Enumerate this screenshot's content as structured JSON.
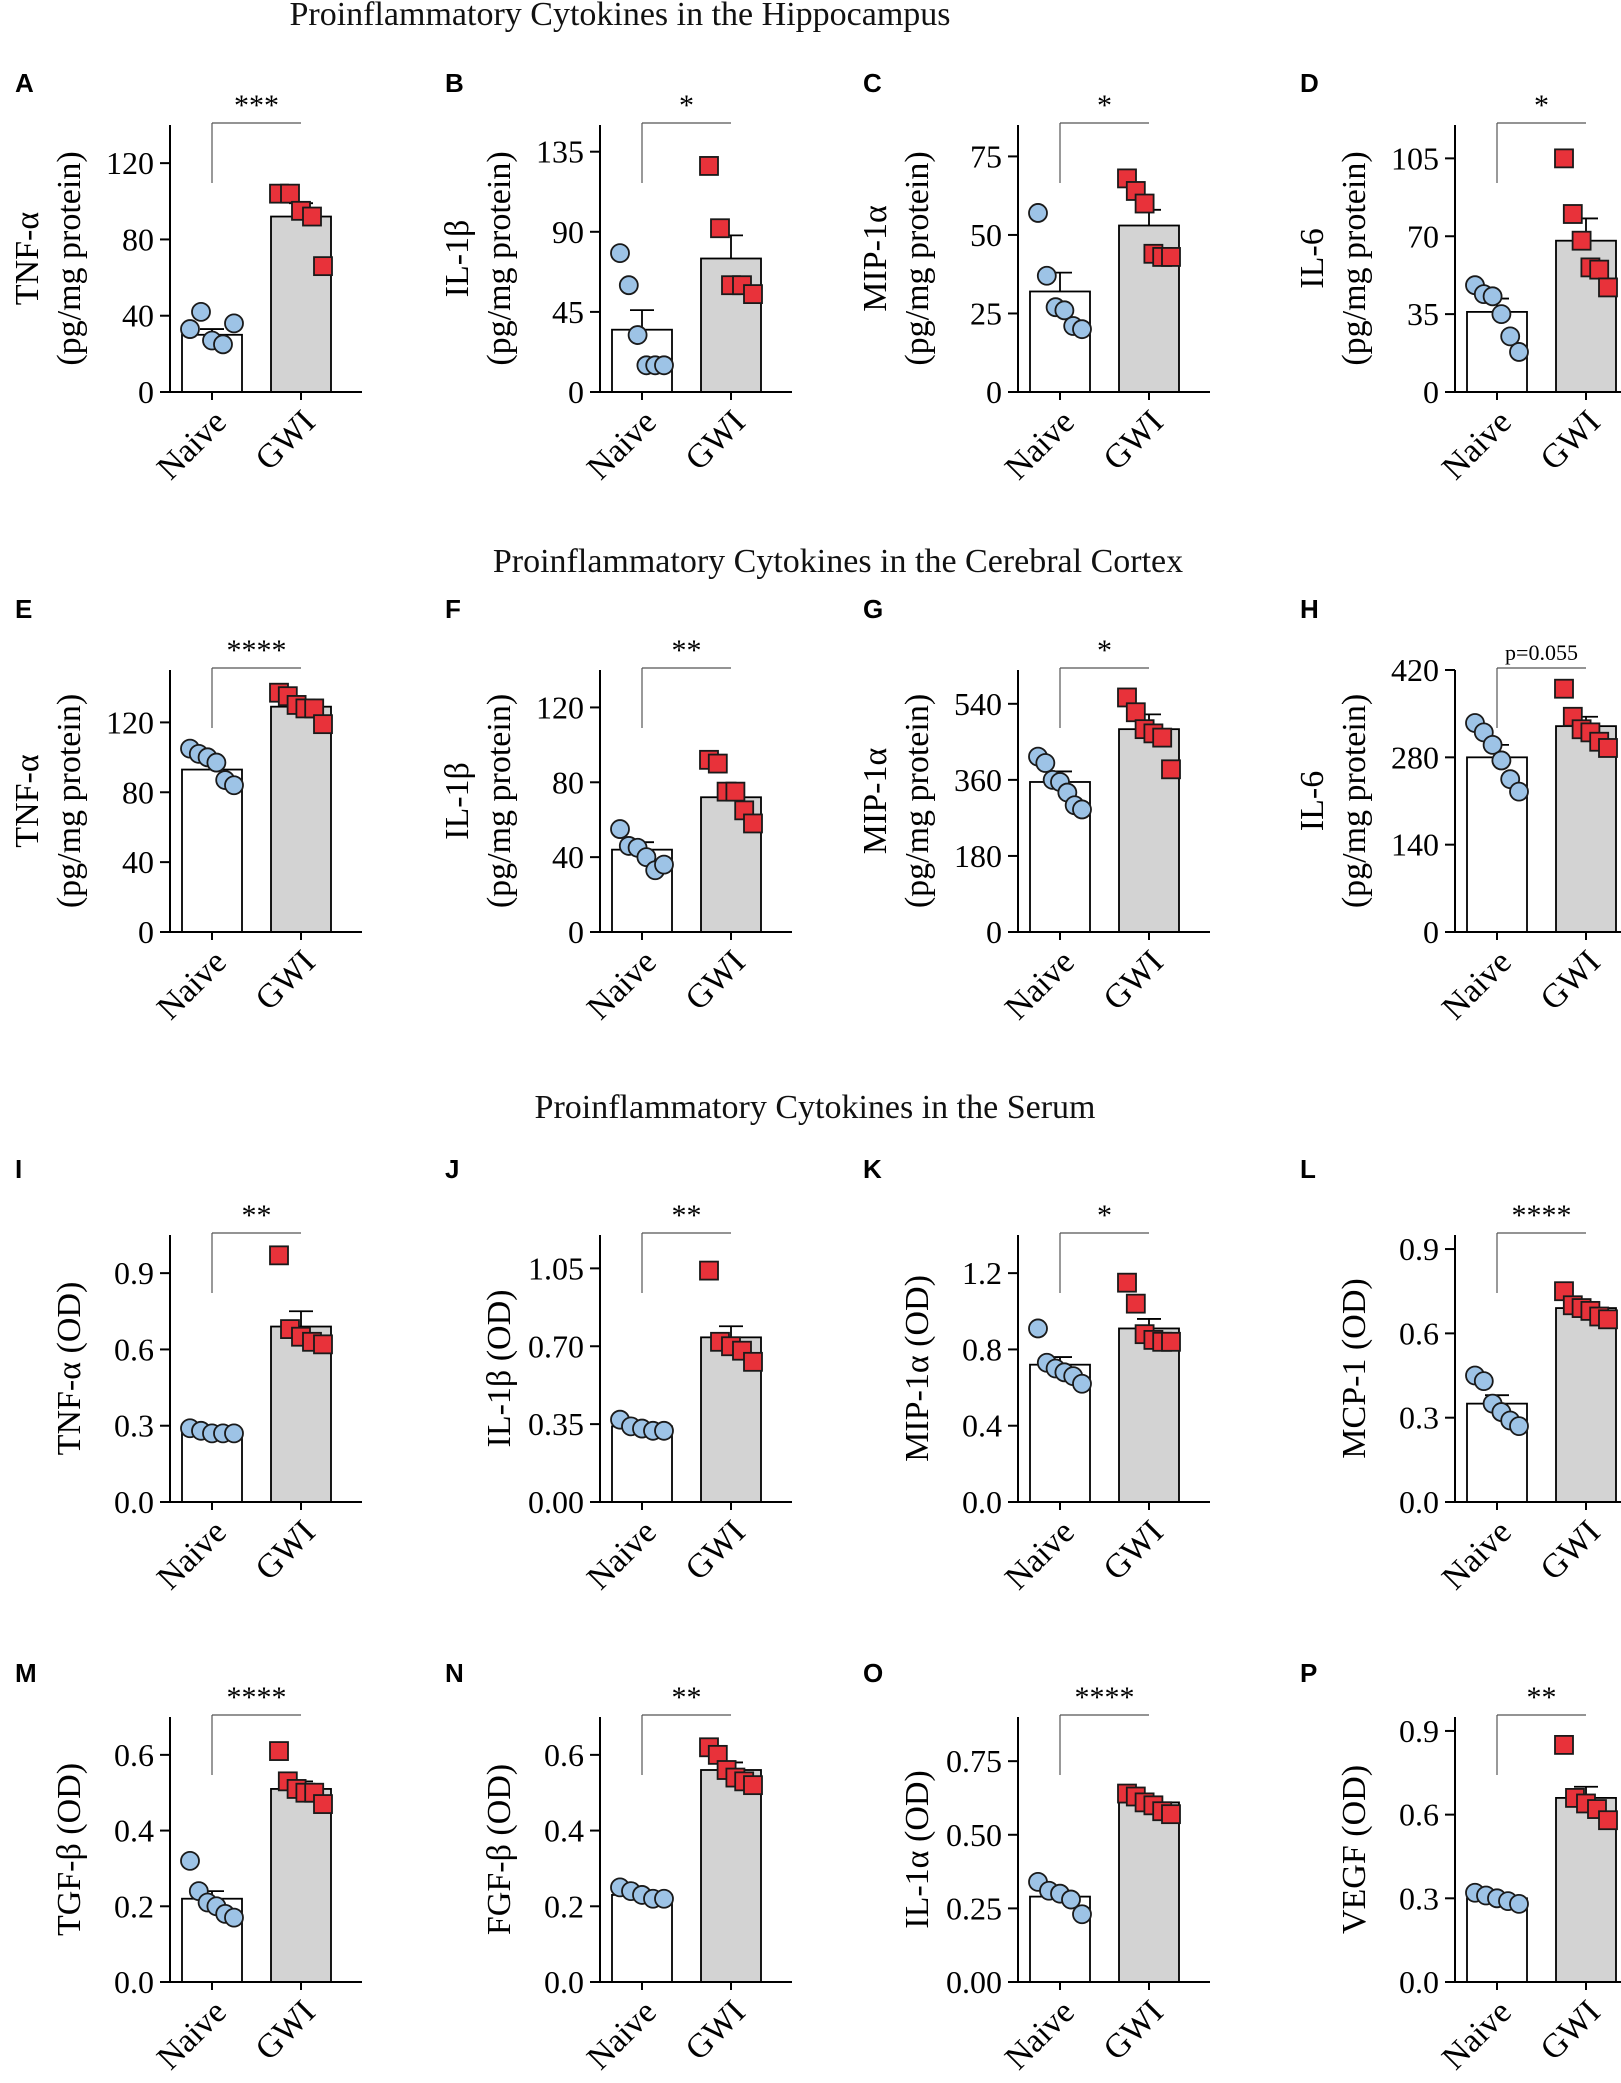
{
  "titles": {
    "hippocampus": "Proinflammatory Cytokines in the Hippocampus",
    "cortex": "Proinflammatory Cytokines in the Cerebral Cortex",
    "serum": "Proinflammatory Cytokines in the Serum"
  },
  "colors": {
    "naive_fill": "#ffffff",
    "gwi_fill": "#d3d3d3",
    "naive_marker": "#9dc3e6",
    "gwi_marker": "#e8323a"
  },
  "chart_data": [
    {
      "panel": "A",
      "type": "bar",
      "title": "",
      "categories": [
        "Naive",
        "GWI"
      ],
      "ylabel_lines": [
        "TNF-α",
        "(pg/mg protein)"
      ],
      "ylim": [
        0,
        140
      ],
      "ticks": [
        0,
        40,
        80,
        120
      ],
      "tick_labels": [
        "0",
        "40",
        "80",
        "120"
      ],
      "means": [
        30,
        92
      ],
      "sems": [
        3,
        7
      ],
      "points": [
        [
          33,
          42,
          27,
          25,
          36
        ],
        [
          104,
          104,
          95,
          92,
          66
        ]
      ],
      "significance": "***"
    },
    {
      "panel": "B",
      "type": "bar",
      "title": "",
      "categories": [
        "Naive",
        "GWI"
      ],
      "ylabel_lines": [
        "IL-1β",
        "(pg/mg protein)"
      ],
      "ylim": [
        0,
        150
      ],
      "ticks": [
        0,
        45,
        90,
        135
      ],
      "tick_labels": [
        "0",
        "45",
        "90",
        "135"
      ],
      "means": [
        35,
        75
      ],
      "sems": [
        11,
        13
      ],
      "points": [
        [
          78,
          60,
          32,
          15,
          15,
          15
        ],
        [
          127,
          92,
          60,
          60,
          55
        ]
      ],
      "significance": "*"
    },
    {
      "panel": "C",
      "type": "bar",
      "title": "",
      "categories": [
        "Naive",
        "GWI"
      ],
      "ylabel_lines": [
        "MIP-1α",
        "(pg/mg protein)"
      ],
      "ylim": [
        0,
        85
      ],
      "ticks": [
        0,
        25,
        50,
        75
      ],
      "tick_labels": [
        "0",
        "25",
        "50",
        "75"
      ],
      "means": [
        32,
        53
      ],
      "sems": [
        6,
        5
      ],
      "points": [
        [
          57,
          37,
          27,
          26,
          21,
          20
        ],
        [
          68,
          64,
          60,
          44,
          43,
          43
        ]
      ],
      "significance": "*"
    },
    {
      "panel": "D",
      "type": "bar",
      "title": "",
      "categories": [
        "Naive",
        "GWI"
      ],
      "ylabel_lines": [
        "IL-6",
        "(pg/mg protein)"
      ],
      "ylim": [
        0,
        120
      ],
      "ticks": [
        0,
        35,
        70,
        105
      ],
      "tick_labels": [
        "0",
        "35",
        "70",
        "105"
      ],
      "means": [
        36,
        68
      ],
      "sems": [
        6,
        10
      ],
      "points": [
        [
          48,
          44,
          43,
          35,
          25,
          18
        ],
        [
          105,
          80,
          68,
          56,
          55,
          47
        ]
      ],
      "significance": "*"
    },
    {
      "panel": "E",
      "type": "bar",
      "title": "",
      "categories": [
        "Naive",
        "GWI"
      ],
      "ylabel_lines": [
        "TNF-α",
        "(pg/mg protein)"
      ],
      "ylim": [
        0,
        150
      ],
      "ticks": [
        0,
        40,
        80,
        120
      ],
      "tick_labels": [
        "0",
        "40",
        "80",
        "120"
      ],
      "means": [
        93,
        129
      ],
      "sems": [
        4,
        3
      ],
      "points": [
        [
          105,
          102,
          100,
          97,
          87,
          84
        ],
        [
          137,
          135,
          130,
          128,
          128,
          119
        ]
      ],
      "significance": "****"
    },
    {
      "panel": "F",
      "type": "bar",
      "title": "",
      "categories": [
        "Naive",
        "GWI"
      ],
      "ylabel_lines": [
        "IL-1β",
        "(pg/mg protein)"
      ],
      "ylim": [
        0,
        140
      ],
      "ticks": [
        0,
        40,
        80,
        120
      ],
      "tick_labels": [
        "0",
        "40",
        "80",
        "120"
      ],
      "means": [
        44,
        72
      ],
      "sems": [
        4,
        7
      ],
      "points": [
        [
          55,
          46,
          45,
          40,
          33,
          36
        ],
        [
          92,
          90,
          75,
          75,
          65,
          58
        ]
      ],
      "significance": "**"
    },
    {
      "panel": "G",
      "type": "bar",
      "title": "",
      "categories": [
        "Naive",
        "GWI"
      ],
      "ylabel_lines": [
        "MIP-1α",
        "(pg/mg protein)"
      ],
      "ylim": [
        0,
        620
      ],
      "ticks": [
        0,
        180,
        360,
        540
      ],
      "tick_labels": [
        "0",
        "180",
        "360",
        "540"
      ],
      "means": [
        355,
        480
      ],
      "sems": [
        25,
        35
      ],
      "points": [
        [
          415,
          400,
          360,
          355,
          330,
          300,
          290
        ],
        [
          555,
          520,
          480,
          470,
          460,
          385
        ]
      ],
      "significance": "*"
    },
    {
      "panel": "H",
      "type": "bar",
      "title": "",
      "categories": [
        "Naive",
        "GWI"
      ],
      "ylabel_lines": [
        "IL-6",
        "(pg/mg protein)"
      ],
      "ylim": [
        0,
        420
      ],
      "ticks": [
        0,
        140,
        280,
        420
      ],
      "tick_labels": [
        "0",
        "140",
        "280",
        "420"
      ],
      "means": [
        280,
        330
      ],
      "sems": [
        20,
        15
      ],
      "points": [
        [
          335,
          320,
          300,
          275,
          245,
          225
        ],
        [
          390,
          345,
          325,
          320,
          305,
          295
        ]
      ],
      "significance": "p=0.055"
    },
    {
      "panel": "I",
      "type": "bar",
      "title": "",
      "categories": [
        "Naive",
        "GWI"
      ],
      "ylabel_lines": [
        "TNF-α (OD)"
      ],
      "ylim": [
        0,
        1.05
      ],
      "ticks": [
        0,
        0.3,
        0.6,
        0.9
      ],
      "tick_labels": [
        "0.0",
        "0.3",
        "0.6",
        "0.9"
      ],
      "means": [
        0.28,
        0.69
      ],
      "sems": [
        0.01,
        0.06
      ],
      "points": [
        [
          0.29,
          0.28,
          0.27,
          0.27,
          0.27
        ],
        [
          0.97,
          0.68,
          0.65,
          0.63,
          0.62
        ]
      ],
      "significance": "**"
    },
    {
      "panel": "J",
      "type": "bar",
      "title": "",
      "categories": [
        "Naive",
        "GWI"
      ],
      "ylabel_lines": [
        "IL-1β (OD)"
      ],
      "ylim": [
        0,
        1.2
      ],
      "ticks": [
        0,
        0.35,
        0.7,
        1.05
      ],
      "tick_labels": [
        "0.00",
        "0.35",
        "0.70",
        "1.05"
      ],
      "means": [
        0.34,
        0.74
      ],
      "sems": [
        0.01,
        0.05
      ],
      "points": [
        [
          0.37,
          0.34,
          0.33,
          0.32,
          0.32
        ],
        [
          1.04,
          0.72,
          0.7,
          0.68,
          0.63
        ]
      ],
      "significance": "**"
    },
    {
      "panel": "K",
      "type": "bar",
      "title": "",
      "categories": [
        "Naive",
        "GWI"
      ],
      "ylabel_lines": [
        "MIP-1α (OD)"
      ],
      "ylim": [
        0,
        1.4
      ],
      "ticks": [
        0,
        0.4,
        0.8,
        1.2
      ],
      "tick_labels": [
        "0.0",
        "0.4",
        "0.8",
        "1.2"
      ],
      "means": [
        0.72,
        0.91
      ],
      "sems": [
        0.04,
        0.05
      ],
      "points": [
        [
          0.91,
          0.73,
          0.7,
          0.68,
          0.66,
          0.62
        ],
        [
          1.15,
          1.04,
          0.88,
          0.85,
          0.84,
          0.84
        ]
      ],
      "significance": "*"
    },
    {
      "panel": "L",
      "type": "bar",
      "title": "",
      "categories": [
        "Naive",
        "GWI"
      ],
      "ylabel_lines": [
        "MCP-1 (OD)"
      ],
      "ylim": [
        0,
        0.95
      ],
      "ticks": [
        0,
        0.3,
        0.6,
        0.9
      ],
      "tick_labels": [
        "0.0",
        "0.3",
        "0.6",
        "0.9"
      ],
      "means": [
        0.35,
        0.69
      ],
      "sems": [
        0.03,
        0.02
      ],
      "points": [
        [
          0.45,
          0.43,
          0.35,
          0.32,
          0.29,
          0.27
        ],
        [
          0.75,
          0.7,
          0.69,
          0.68,
          0.66,
          0.65
        ]
      ],
      "significance": "****"
    },
    {
      "panel": "M",
      "type": "bar",
      "title": "",
      "categories": [
        "Naive",
        "GWI"
      ],
      "ylabel_lines": [
        "TGF-β (OD)"
      ],
      "ylim": [
        0,
        0.7
      ],
      "ticks": [
        0,
        0.2,
        0.4,
        0.6
      ],
      "tick_labels": [
        "0.0",
        "0.2",
        "0.4",
        "0.6"
      ],
      "means": [
        0.22,
        0.51
      ],
      "sems": [
        0.02,
        0.02
      ],
      "points": [
        [
          0.32,
          0.24,
          0.21,
          0.2,
          0.18,
          0.17
        ],
        [
          0.61,
          0.53,
          0.51,
          0.5,
          0.5,
          0.47
        ]
      ],
      "significance": "****"
    },
    {
      "panel": "N",
      "type": "bar",
      "title": "",
      "categories": [
        "Naive",
        "GWI"
      ],
      "ylabel_lines": [
        "FGF-β (OD)"
      ],
      "ylim": [
        0,
        0.7
      ],
      "ticks": [
        0,
        0.2,
        0.4,
        0.6
      ],
      "tick_labels": [
        "0.0",
        "0.2",
        "0.4",
        "0.6"
      ],
      "means": [
        0.23,
        0.56
      ],
      "sems": [
        0.01,
        0.02
      ],
      "points": [
        [
          0.25,
          0.24,
          0.23,
          0.22,
          0.22
        ],
        [
          0.62,
          0.6,
          0.56,
          0.54,
          0.53,
          0.52
        ]
      ],
      "significance": "**"
    },
    {
      "panel": "O",
      "type": "bar",
      "title": "",
      "categories": [
        "Naive",
        "GWI"
      ],
      "ylabel_lines": [
        "IL-1α (OD)"
      ],
      "ylim": [
        0,
        0.9
      ],
      "ticks": [
        0,
        0.25,
        0.5,
        0.75
      ],
      "tick_labels": [
        "0.00",
        "0.25",
        "0.50",
        "0.75"
      ],
      "means": [
        0.29,
        0.61
      ],
      "sems": [
        0.02,
        0.01
      ],
      "points": [
        [
          0.34,
          0.31,
          0.3,
          0.28,
          0.23
        ],
        [
          0.64,
          0.63,
          0.61,
          0.6,
          0.58,
          0.57
        ]
      ],
      "significance": "****"
    },
    {
      "panel": "P",
      "type": "bar",
      "title": "",
      "categories": [
        "Naive",
        "GWI"
      ],
      "ylabel_lines": [
        "VEGF (OD)"
      ],
      "ylim": [
        0,
        0.95
      ],
      "ticks": [
        0,
        0.3,
        0.6,
        0.9
      ],
      "tick_labels": [
        "0.0",
        "0.3",
        "0.6",
        "0.9"
      ],
      "means": [
        0.3,
        0.66
      ],
      "sems": [
        0.01,
        0.04
      ],
      "points": [
        [
          0.32,
          0.31,
          0.3,
          0.29,
          0.28
        ],
        [
          0.85,
          0.66,
          0.64,
          0.62,
          0.58
        ]
      ],
      "significance": "**"
    }
  ]
}
